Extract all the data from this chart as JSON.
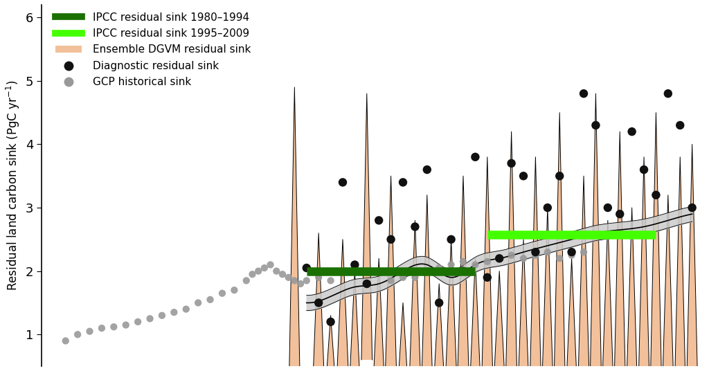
{
  "ylabel": "Residual land carbon sink (PgC yr⁻¹)",
  "ylim": [
    0.5,
    6.2
  ],
  "xlim": [
    1958,
    2013
  ],
  "yticks": [
    1,
    2,
    3,
    4,
    5,
    6
  ],
  "background_color": "#ffffff",
  "legend_labels": [
    "IPCC residual sink 1980–1994",
    "IPCC residual sink 1995–2009",
    "Ensemble DGVM residual sink",
    "Diagnostic residual sink",
    "GCP historical sink"
  ],
  "ipcc_bar1": {
    "x_start": 1980,
    "x_end": 1994,
    "y": 2.0,
    "color": "#1a7000",
    "linewidth": 9
  },
  "ipcc_bar2": {
    "x_start": 1995,
    "x_end": 2009,
    "y": 2.58,
    "color": "#44ff00",
    "linewidth": 9
  },
  "dgvm_color": "#f2c09a",
  "trend_band_color": "#cccccc",
  "diag_color": "#111111",
  "gcp_color": "#999999",
  "dgvm_spike_color": "#000000"
}
